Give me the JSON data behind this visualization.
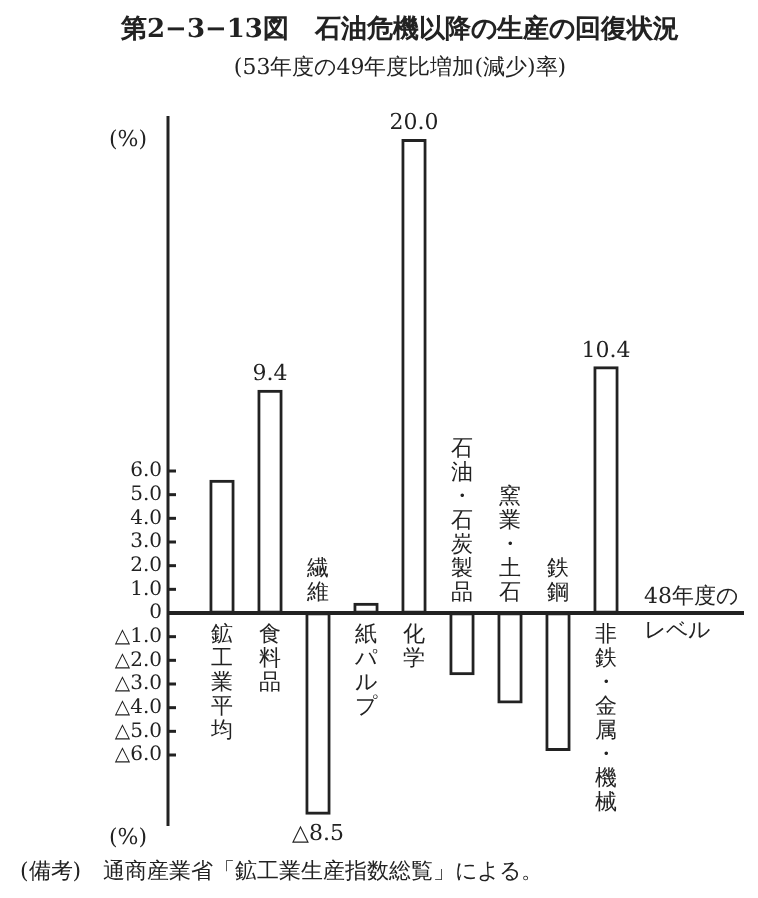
{
  "chart_data": {
    "type": "bar",
    "title": "第2−3−13図　石油危機以降の生産の回復状況",
    "subtitle": "(53年度の49年度比増加(減少)率)",
    "ylabel": "(%)",
    "categories": [
      "鉱工業平均",
      "食料品",
      "繊維",
      "紙パルプ",
      "化学",
      "石油・石炭製品",
      "窯業・土石",
      "鉄鋼",
      "非鉄・金属・機械"
    ],
    "values": [
      5.6,
      9.4,
      -8.5,
      0.4,
      20.0,
      -2.6,
      -3.8,
      -5.8,
      10.4
    ],
    "value_labels": [
      null,
      "9.4",
      null,
      null,
      "20.0",
      null,
      null,
      null,
      "10.4"
    ],
    "color": "#ffffff",
    "ylim": [
      -9,
      21
    ],
    "yticks": [
      {
        "value": 6,
        "label": "6.0"
      },
      {
        "value": 5,
        "label": "5.0"
      },
      {
        "value": 4,
        "label": "4.0"
      },
      {
        "value": 3,
        "label": "3.0"
      },
      {
        "value": 2,
        "label": "2.0"
      },
      {
        "value": 1,
        "label": "1.0"
      },
      0,
      {
        "value": -1,
        "label": "△1.0"
      },
      {
        "value": -2,
        "label": "△2.0"
      },
      {
        "value": -3,
        "label": "△3.0"
      },
      {
        "value": -4,
        "label": "△4.0"
      },
      {
        "value": -5,
        "label": "△5.0"
      },
      {
        "value": -6,
        "label": "△6.0"
      }
    ],
    "legend": false,
    "annotations": [
      "48年度のレベル",
      {
        "text": "△8.5",
        "x": "繊維",
        "y": -8.5
      },
      "(備考)　通商産業省「鉱工業生産指数総覧」による。"
    ]
  }
}
